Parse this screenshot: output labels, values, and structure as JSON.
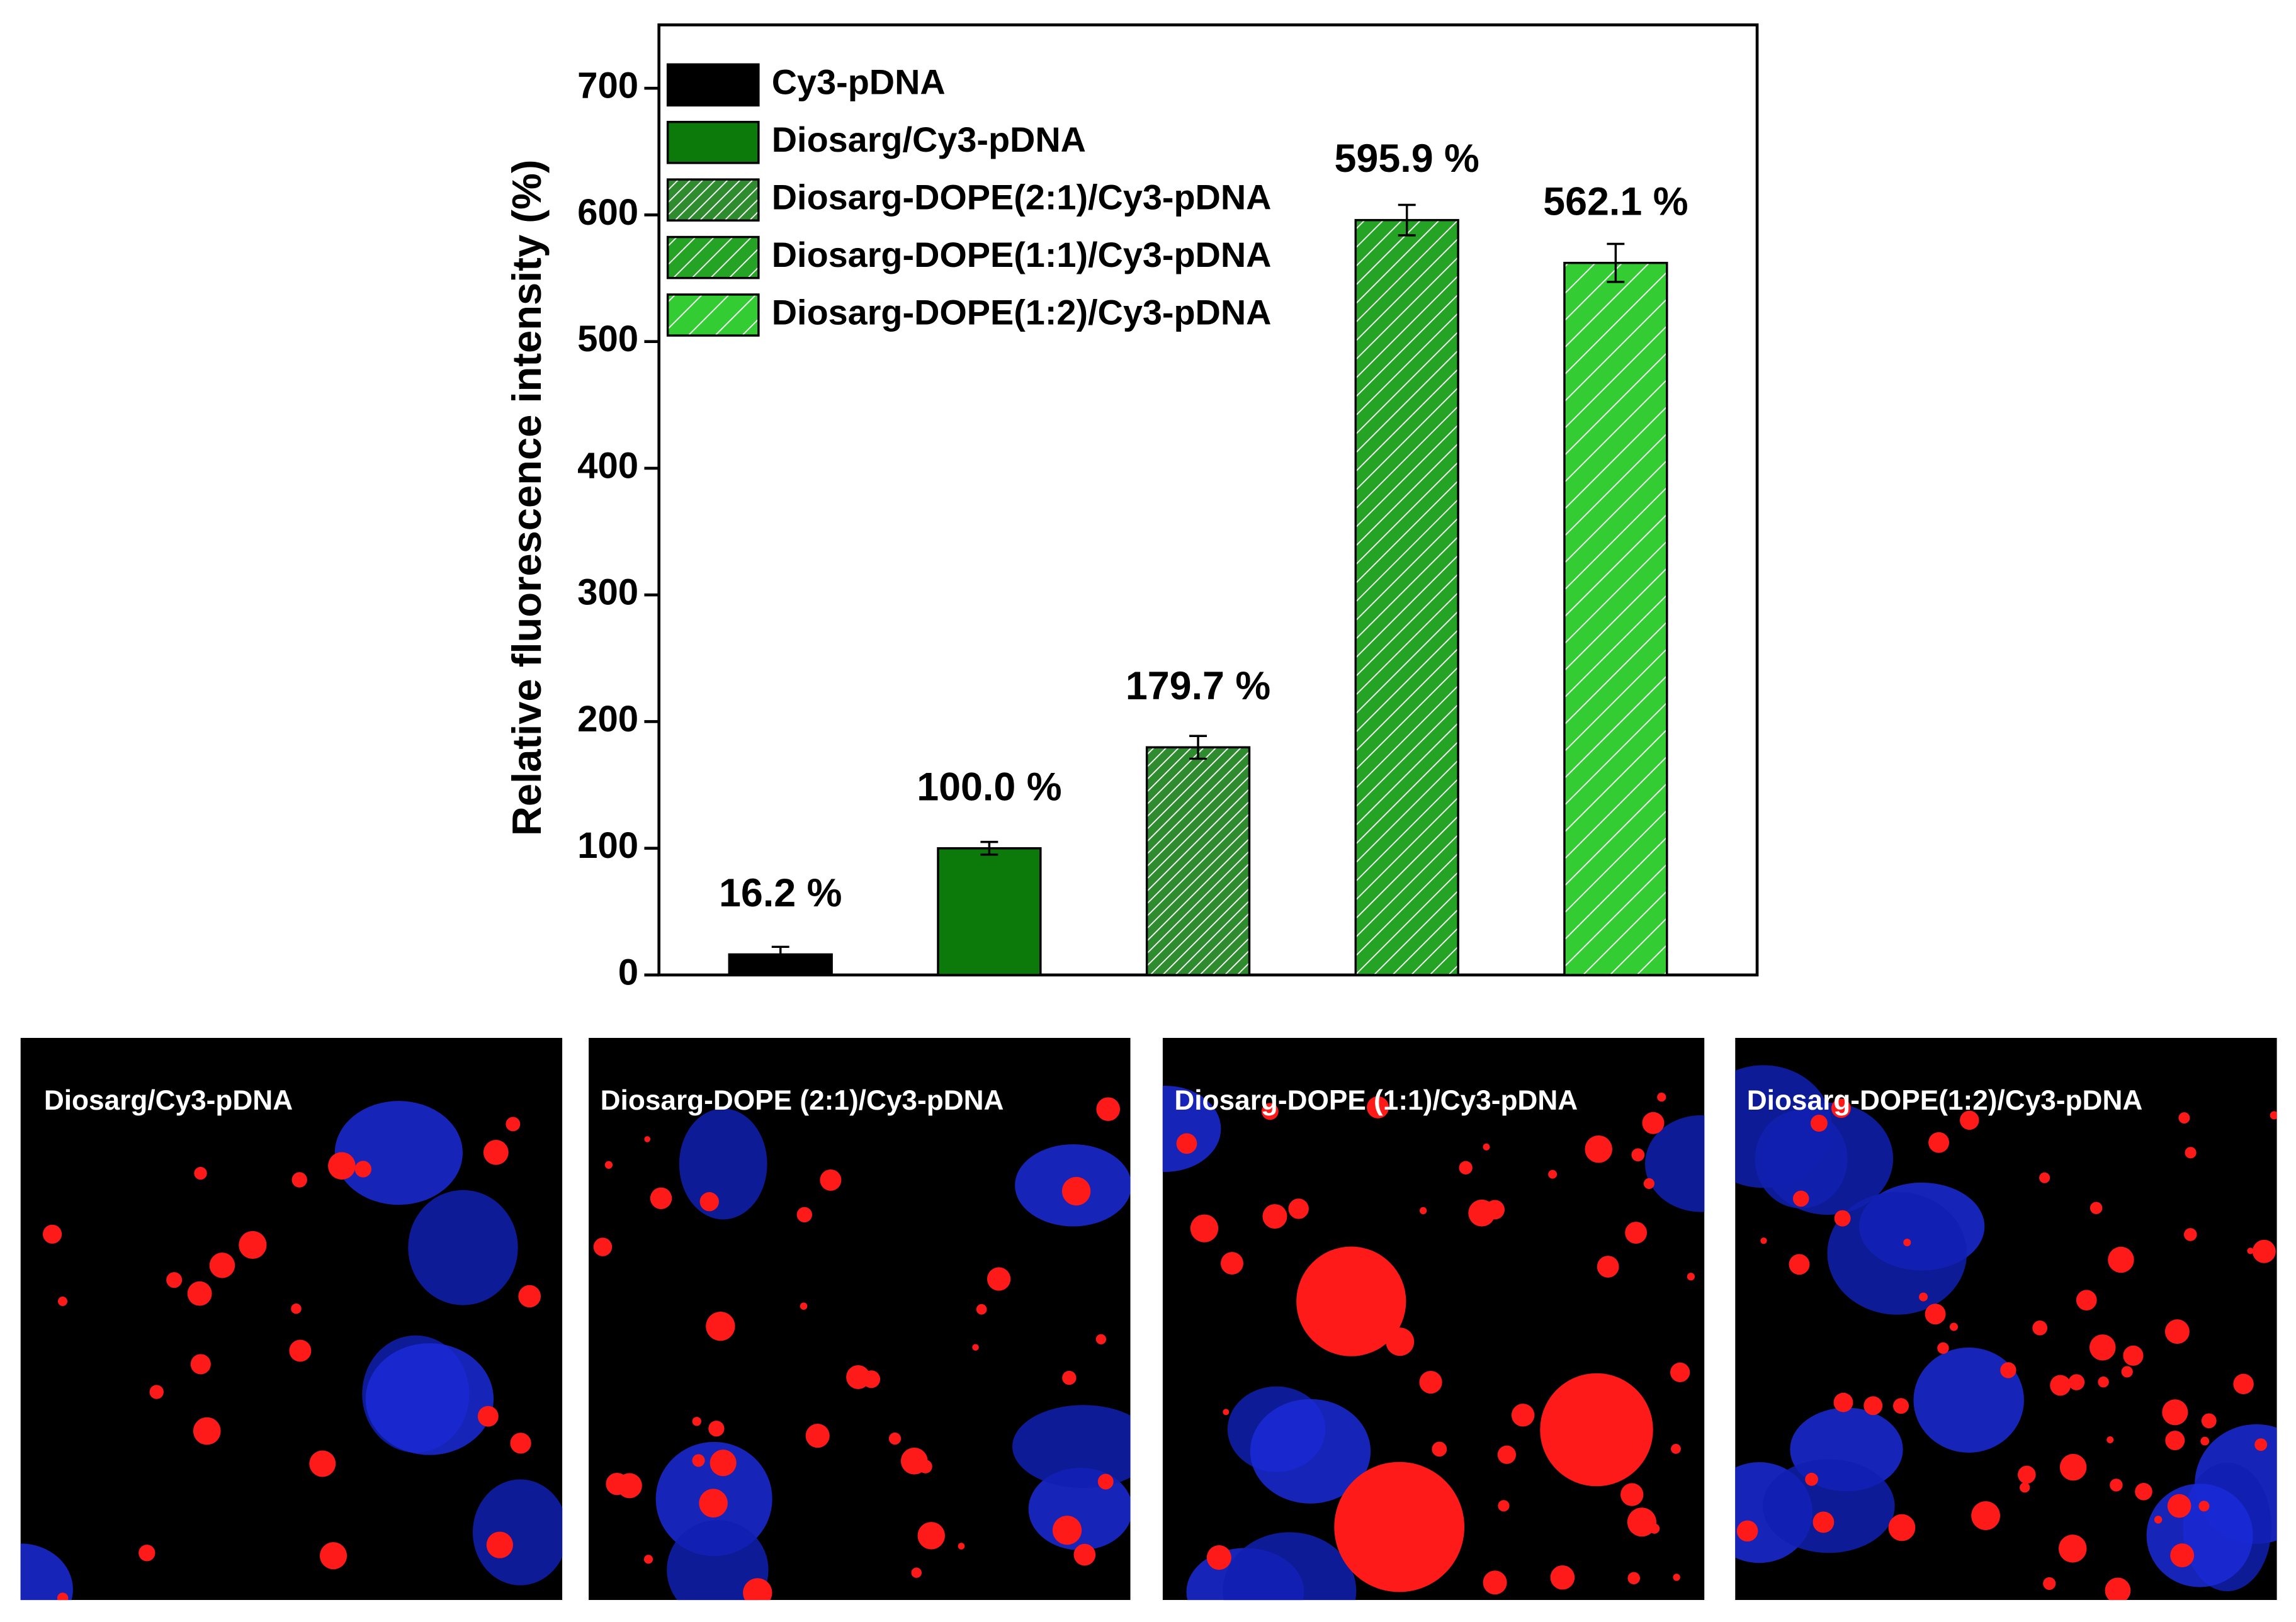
{
  "chart_data": {
    "type": "bar",
    "ylabel": "Relative fluorescence intensity (%)",
    "ylim": [
      0,
      750
    ],
    "yticks": [
      0,
      100,
      200,
      300,
      400,
      500,
      600,
      700
    ],
    "legend": "upper left",
    "series": [
      {
        "name": "Cy3-pDNA",
        "color": "#000000",
        "pattern": "none",
        "values": [
          16.2
        ],
        "value_labels": [
          "16.2 %"
        ],
        "errors": [
          6
        ]
      },
      {
        "name": "Diosarg/Cy3-pDNA",
        "color": "#0b7a0b",
        "pattern": "none",
        "values": [
          100.0
        ],
        "value_labels": [
          "100.0 %"
        ],
        "errors": [
          5
        ]
      },
      {
        "name": "Diosarg-DOPE(2:1)/Cy3-pDNA",
        "color": "#2e8b2e",
        "pattern": "dense",
        "values": [
          179.7
        ],
        "value_labels": [
          "179.7 %"
        ],
        "errors": [
          9
        ]
      },
      {
        "name": "Diosarg-DOPE(1:1)/Cy3-pDNA",
        "color": "#24a324",
        "pattern": "medium",
        "values": [
          595.9
        ],
        "value_labels": [
          "595.9 %"
        ],
        "errors": [
          12
        ]
      },
      {
        "name": "Diosarg-DOPE(1:2)/Cy3-pDNA",
        "color": "#33cc33",
        "pattern": "sparse",
        "values": [
          562.1
        ],
        "value_labels": [
          "562.1 %"
        ],
        "errors": [
          15
        ]
      }
    ]
  },
  "panels": [
    {
      "label": "Diosarg/Cy3-pDNA"
    },
    {
      "label": "Diosarg-DOPE (2:1)/Cy3-pDNA"
    },
    {
      "label": "Diosarg-DOPE (1:1)/Cy3-pDNA"
    },
    {
      "label": "Diosarg-DOPE(1:2)/Cy3-pDNA"
    }
  ]
}
